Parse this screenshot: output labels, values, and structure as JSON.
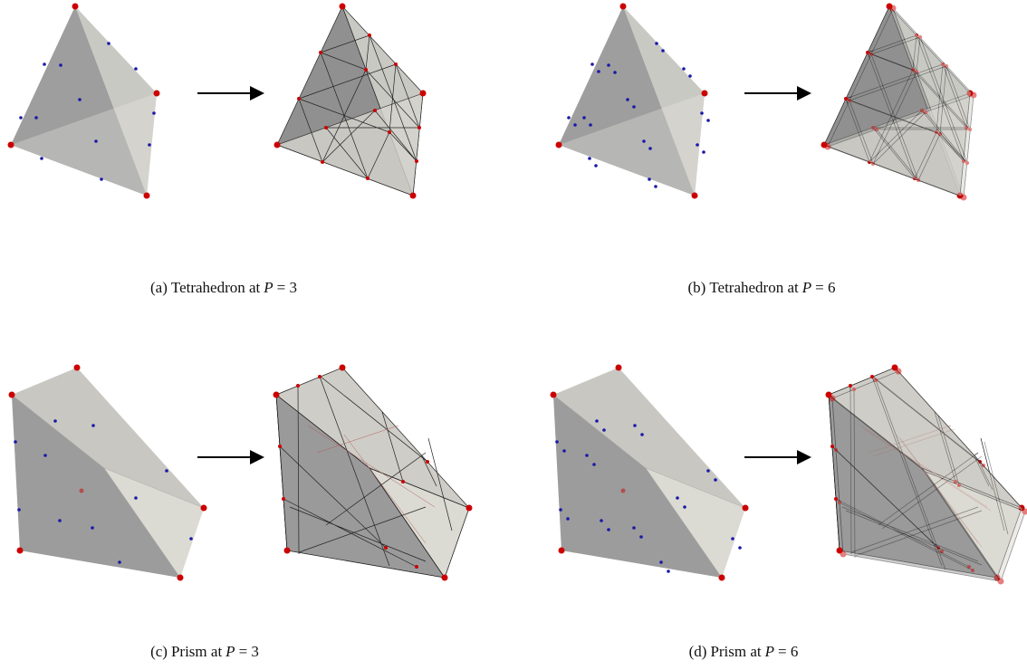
{
  "figure": {
    "panels": [
      {
        "label": "(a)",
        "text": "Tetrahedron at",
        "variable": "P",
        "equation": "= 3"
      },
      {
        "label": "(b)",
        "text": "Tetrahedron at",
        "variable": "P",
        "equation": "= 6"
      },
      {
        "label": "(c)",
        "text": "Prism at",
        "variable": "P",
        "equation": "= 3"
      },
      {
        "label": "(d)",
        "text": "Prism at",
        "variable": "P",
        "equation": "= 6"
      }
    ]
  }
}
